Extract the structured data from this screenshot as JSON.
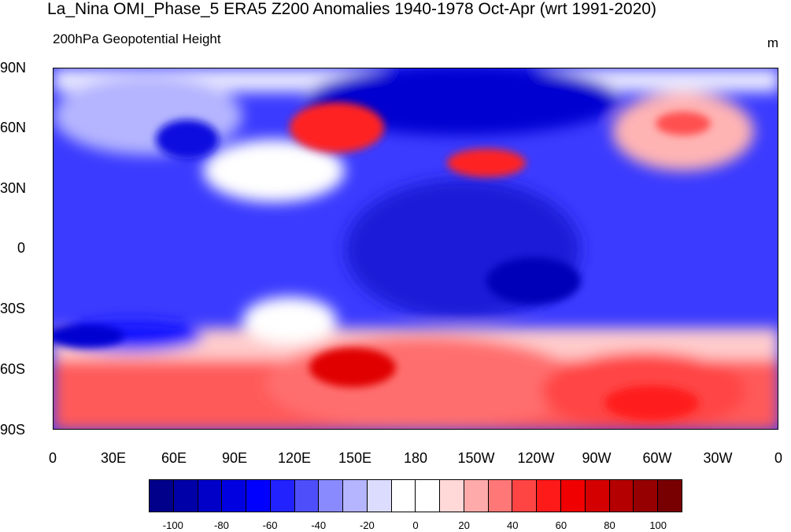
{
  "title": "La_Nina OMI_Phase_5 ERA5 Z200 Anomalies 1940-1978 Oct-Apr (wrt 1991-2020)",
  "subtitle": "200hPa Geopotential Height",
  "units": "m",
  "lat_labels": [
    "90N",
    "60N",
    "30N",
    "0",
    "30S",
    "60S",
    "90S"
  ],
  "lon_labels": [
    "0",
    "30E",
    "60E",
    "90E",
    "120E",
    "150E",
    "180",
    "150W",
    "120W",
    "90W",
    "60W",
    "30W",
    "0"
  ],
  "colorbar": {
    "colors": [
      "#00008b",
      "#0000a8",
      "#0000c8",
      "#0000e0",
      "#0000ff",
      "#2222ff",
      "#4e4efb",
      "#8a8aff",
      "#b4b4ff",
      "#dcdcff",
      "#ffffff",
      "#ffffff",
      "#ffd8d8",
      "#ffaaaa",
      "#ff7777",
      "#ff4444",
      "#ff1a1a",
      "#f00000",
      "#d40000",
      "#b40000",
      "#960000",
      "#780000"
    ],
    "labels": [
      "-100",
      "-80",
      "-60",
      "-40",
      "-20",
      "0",
      "20",
      "40",
      "60",
      "80",
      "100"
    ]
  }
}
